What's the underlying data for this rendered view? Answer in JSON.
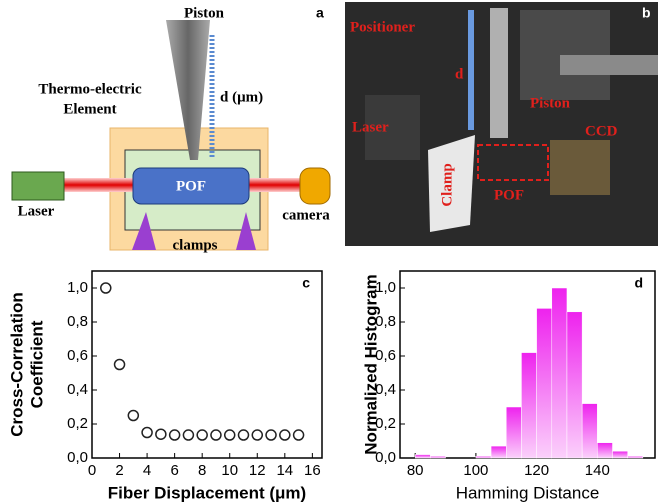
{
  "panel_a": {
    "label": "a",
    "piston": "Piston",
    "d": "d (μm)",
    "element": [
      "Thermo-electric",
      "Element"
    ],
    "pof": "POF",
    "laser": "Laser",
    "camera": "camera",
    "clamps": "clamps"
  },
  "panel_b": {
    "label": "b",
    "positioner": "Positioner",
    "d": "d",
    "piston": "Piston",
    "laser": "Laser",
    "clamp": "Clamp",
    "pof": "POF",
    "ccd": "CCD"
  },
  "chart_data": [
    {
      "type": "scatter",
      "label": "c",
      "x_label": "Fiber Displacement (μm)",
      "y_label": [
        "Cross-Correlation",
        "Coefficient"
      ],
      "x": [
        1,
        2,
        3,
        4,
        5,
        6,
        7,
        8,
        9,
        10,
        11,
        12,
        13,
        14,
        15
      ],
      "y": [
        1.0,
        0.55,
        0.25,
        0.15,
        0.14,
        0.135,
        0.135,
        0.135,
        0.135,
        0.135,
        0.135,
        0.135,
        0.135,
        0.135,
        0.135
      ],
      "color": "#222222",
      "xlim": [
        0,
        16.7
      ],
      "ylim": [
        0,
        1.1
      ],
      "xticks": [
        0,
        2,
        4,
        6,
        8,
        10,
        12,
        14,
        16
      ],
      "yticks": [
        {
          "value": 0,
          "label": "0,0"
        },
        {
          "value": 0.2,
          "label": "0,2"
        },
        {
          "value": 0.4,
          "label": "0,4"
        },
        {
          "value": 0.6,
          "label": "0,6"
        },
        {
          "value": 0.8,
          "label": "0,8"
        },
        {
          "value": 1.0,
          "label": "1,0"
        }
      ]
    },
    {
      "type": "histogram",
      "label": "d",
      "x_label": "Hamming Distance",
      "y_label": "Normalized Histogram",
      "bins": [
        80,
        85,
        90,
        95,
        100,
        105,
        110,
        115,
        120,
        125,
        130,
        135,
        140,
        145,
        150,
        155
      ],
      "counts": [
        0.02,
        0.01,
        0,
        0,
        0.01,
        0.07,
        0.3,
        0.62,
        0.88,
        1.0,
        0.86,
        0.32,
        0.09,
        0.04,
        0.01
      ],
      "color": "#ee22ee",
      "xlim": [
        75,
        159
      ],
      "ylim": [
        0,
        1.1
      ],
      "xticks": [
        80,
        100,
        120,
        140
      ],
      "yticks": [
        {
          "value": 0,
          "label": "0,0"
        },
        {
          "value": 0.2,
          "label": "0,2"
        },
        {
          "value": 0.4,
          "label": "0,4"
        },
        {
          "value": 0.6,
          "label": "0,6"
        },
        {
          "value": 0.8,
          "label": "0,8"
        },
        {
          "value": 1.0,
          "label": "1,0"
        }
      ]
    }
  ]
}
